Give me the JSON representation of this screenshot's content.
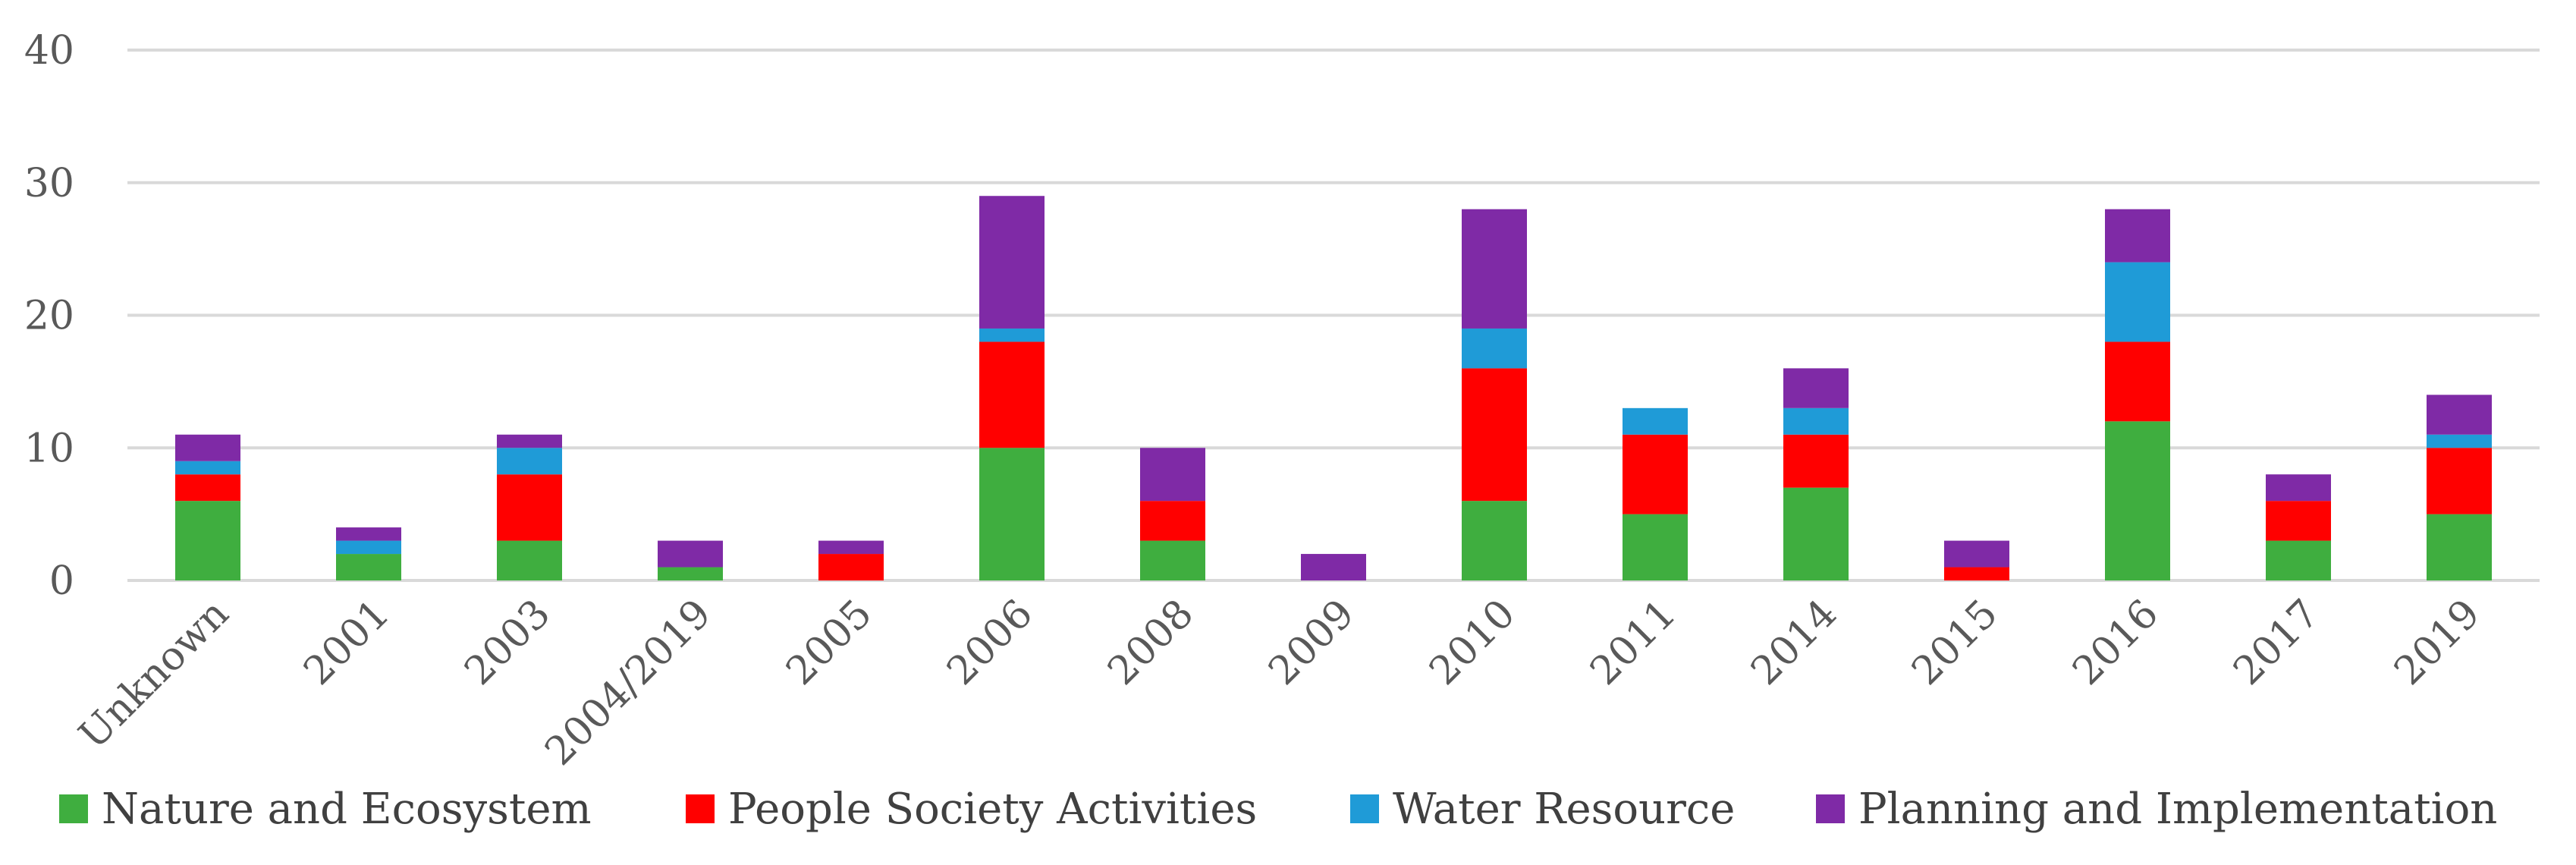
{
  "chart_data": {
    "type": "bar",
    "stacked": true,
    "title": "",
    "xlabel": "",
    "ylabel": "",
    "ylim": [
      0,
      40
    ],
    "yticks": [
      0,
      10,
      20,
      30,
      40
    ],
    "grid": true,
    "legend_position": "bottom",
    "categories": [
      "Unknown",
      "2001",
      "2003",
      "2004/2019",
      "2005",
      "2006",
      "2008",
      "2009",
      "2010",
      "2011",
      "2014",
      "2015",
      "2016",
      "2017",
      "2019"
    ],
    "series": [
      {
        "name": "Nature and Ecosystem",
        "color": "#3fae3f",
        "values": [
          6,
          2,
          3,
          1,
          0,
          10,
          3,
          0,
          6,
          5,
          7,
          0,
          12,
          3,
          5
        ]
      },
      {
        "name": "People Society Activities",
        "color": "#ff0000",
        "values": [
          2,
          0,
          5,
          0,
          2,
          8,
          3,
          0,
          10,
          6,
          4,
          1,
          6,
          3,
          5
        ]
      },
      {
        "name": "Water Resource",
        "color": "#1f9bd7",
        "values": [
          1,
          1,
          2,
          0,
          0,
          1,
          0,
          0,
          3,
          2,
          2,
          0,
          6,
          0,
          1
        ]
      },
      {
        "name": "Planning and Implementation",
        "color": "#7f2aa6",
        "values": [
          2,
          1,
          1,
          2,
          1,
          10,
          4,
          2,
          9,
          0,
          3,
          2,
          4,
          2,
          3
        ]
      }
    ]
  }
}
